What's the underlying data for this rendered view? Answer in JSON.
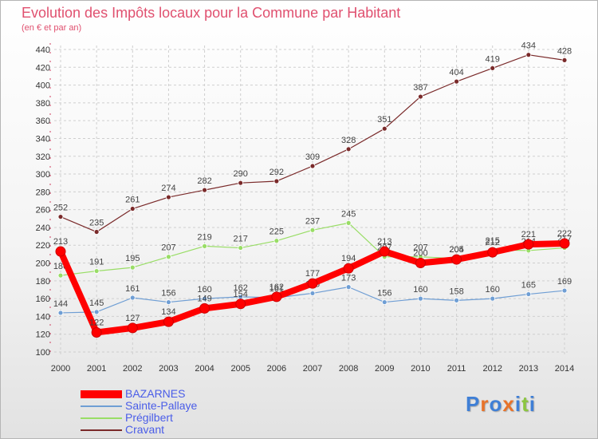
{
  "title": "Evolution des Impôts locaux pour la Commune par Habitant",
  "subtitle": "(en € et par an)",
  "logo": {
    "letters": [
      "P",
      "r",
      "o",
      "x",
      "i",
      "t",
      "i"
    ]
  },
  "colors": {
    "title": "#e0506f",
    "legend_text": "#4a5de8",
    "grid": "#cfcfcf",
    "axis_text": "#333333",
    "logo": [
      "#3f7fd6",
      "#e8732a",
      "#3f7fd6",
      "#e8732a",
      "#3f7fd6",
      "#8cc63f",
      "#3f7fd6"
    ]
  },
  "legend": [
    {
      "name": "BAZARNES",
      "color": "#ff0000"
    },
    {
      "name": "Sainte-Pallaye",
      "color": "#6f9ed4"
    },
    {
      "name": "Prégilbert",
      "color": "#99dd66"
    },
    {
      "name": "Cravant",
      "color": "#7a2a2a"
    }
  ],
  "chart_data": {
    "type": "line",
    "title": "Evolution des Impôts locaux pour la Commune par Habitant",
    "subtitle": "(en € et par an)",
    "x": [
      2000,
      2001,
      2002,
      2003,
      2004,
      2005,
      2006,
      2007,
      2008,
      2009,
      2010,
      2011,
      2012,
      2013,
      2014
    ],
    "ylim": [
      100,
      440
    ],
    "yticks": [
      100,
      120,
      140,
      160,
      180,
      200,
      220,
      240,
      260,
      280,
      300,
      320,
      340,
      360,
      380,
      400,
      420,
      440
    ],
    "grid": true,
    "legend_position": "bottom-left",
    "series": [
      {
        "name": "Cravant",
        "color": "#7a2a2a",
        "values": [
          252,
          235,
          261,
          274,
          282,
          290,
          292,
          309,
          328,
          351,
          387,
          404,
          419,
          434,
          428
        ]
      },
      {
        "name": "Prégilbert",
        "color": "#99dd66",
        "values": [
          186,
          191,
          195,
          207,
          219,
          217,
          225,
          237,
          245,
          207,
          207,
          205,
          215,
          214,
          217
        ]
      },
      {
        "name": "Sainte-Pallaye",
        "color": "#6f9ed4",
        "values": [
          144,
          145,
          161,
          156,
          160,
          162,
          161,
          166,
          173,
          156,
          160,
          158,
          160,
          165,
          169
        ]
      },
      {
        "name": "BAZARNES",
        "color": "#ff0000",
        "values": [
          213,
          122,
          127,
          134,
          149,
          154,
          162,
          177,
          194,
          213,
          200,
          204,
          212,
          221,
          222
        ]
      }
    ]
  }
}
